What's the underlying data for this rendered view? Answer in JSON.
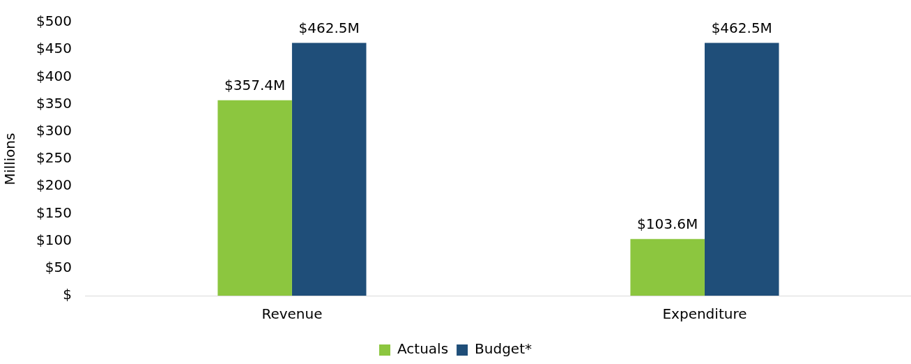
{
  "chart_data": {
    "type": "bar",
    "categories": [
      "Revenue",
      "Expenditure"
    ],
    "ylabel": "Millions",
    "series": [
      {
        "name": "Actuals",
        "color": "#8cc63f",
        "values": [
          357.4,
          103.6
        ],
        "value_labels": [
          "$357.4M",
          "$103.6M"
        ]
      },
      {
        "name": "Budget*",
        "color": "#1f4e79",
        "values": [
          462.5,
          462.5
        ],
        "value_labels": [
          "$462.5M",
          "$462.5M"
        ]
      }
    ],
    "ylim": [
      0,
      500
    ],
    "yticks": [
      {
        "value": 0,
        "label": "$"
      },
      {
        "value": 50,
        "label": "$50"
      },
      {
        "value": 100,
        "label": "$100"
      },
      {
        "value": 150,
        "label": "$150"
      },
      {
        "value": 200,
        "label": "$200"
      },
      {
        "value": 250,
        "label": "$250"
      },
      {
        "value": 300,
        "label": "$300"
      },
      {
        "value": 350,
        "label": "$350"
      },
      {
        "value": 400,
        "label": "$400"
      },
      {
        "value": 450,
        "label": "$450"
      },
      {
        "value": 500,
        "label": "$500"
      }
    ],
    "grid": false,
    "legend": "bottom"
  }
}
